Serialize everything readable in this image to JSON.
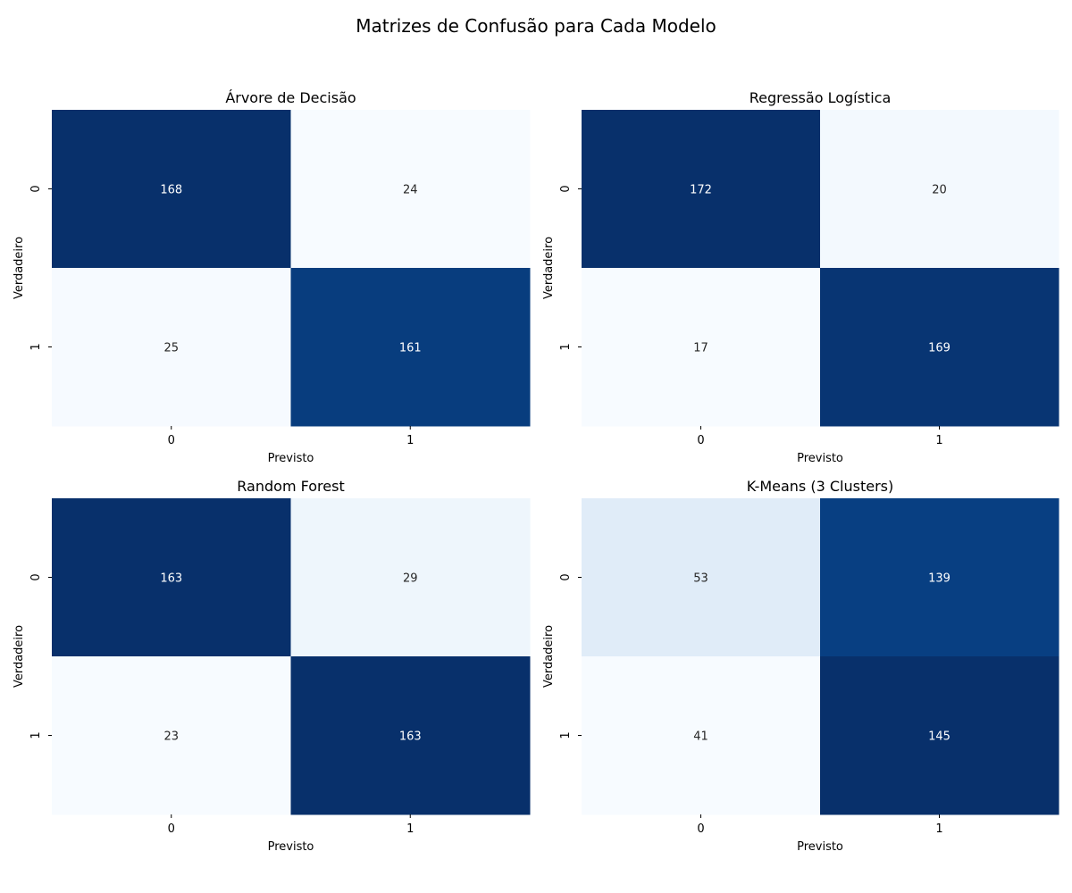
{
  "figure": {
    "suptitle": "Matrizes de Confusão para Cada Modelo"
  },
  "colormap": {
    "name": "Blues",
    "low": "#f7fbff",
    "high": "#08306b"
  },
  "chart_data": [
    {
      "type": "heatmap",
      "title": "Árvore de Decisão",
      "xlabel": "Previsto",
      "ylabel": "Verdadeiro",
      "x_ticklabels": [
        "0",
        "1"
      ],
      "y_ticklabels": [
        "0",
        "1"
      ],
      "matrix": [
        [
          168,
          24
        ],
        [
          25,
          161
        ]
      ],
      "colorbar": false
    },
    {
      "type": "heatmap",
      "title": "Regressão Logística",
      "xlabel": "Previsto",
      "ylabel": "Verdadeiro",
      "x_ticklabels": [
        "0",
        "1"
      ],
      "y_ticklabels": [
        "0",
        "1"
      ],
      "matrix": [
        [
          172,
          20
        ],
        [
          17,
          169
        ]
      ],
      "colorbar": false
    },
    {
      "type": "heatmap",
      "title": "Random Forest",
      "xlabel": "Previsto",
      "ylabel": "Verdadeiro",
      "x_ticklabels": [
        "0",
        "1"
      ],
      "y_ticklabels": [
        "0",
        "1"
      ],
      "matrix": [
        [
          163,
          29
        ],
        [
          23,
          163
        ]
      ],
      "colorbar": false
    },
    {
      "type": "heatmap",
      "title": "K-Means (3 Clusters)",
      "xlabel": "Previsto",
      "ylabel": "Verdadeiro",
      "x_ticklabels": [
        "0",
        "1"
      ],
      "y_ticklabels": [
        "0",
        "1"
      ],
      "matrix": [
        [
          53,
          139
        ],
        [
          41,
          145
        ]
      ],
      "colorbar": false
    }
  ]
}
